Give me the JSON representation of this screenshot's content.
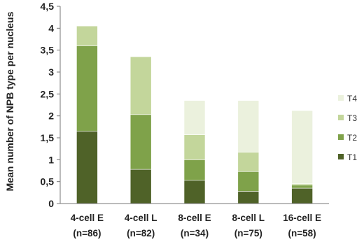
{
  "chart_data": {
    "type": "bar",
    "stacked": true,
    "ylabel": "Mean number of NPB type per nucleus",
    "ylim": [
      0,
      4.5
    ],
    "yticks": [
      "0",
      "0,5",
      "1",
      "1,5",
      "2",
      "2,5",
      "3",
      "3,5",
      "4",
      "4,5"
    ],
    "categories": [
      [
        "4-cell E",
        "(n=86)"
      ],
      [
        "4-cell L",
        "(n=82)"
      ],
      [
        "8-cell E",
        "(n=34)"
      ],
      [
        "8-cell L",
        "(n=75)"
      ],
      [
        "16-cell E",
        "(n=58)"
      ]
    ],
    "series": [
      {
        "name": "T1",
        "color": "#4f6228",
        "values": [
          1.65,
          0.78,
          0.53,
          0.28,
          0.35
        ]
      },
      {
        "name": "T2",
        "color": "#7fa24a",
        "values": [
          1.95,
          1.25,
          0.47,
          0.45,
          0.07
        ]
      },
      {
        "name": "T3",
        "color": "#c3d69b",
        "values": [
          0.45,
          1.32,
          0.57,
          0.44,
          0.03
        ]
      },
      {
        "name": "T4",
        "color": "#ebf1dd",
        "values": [
          0.0,
          0.0,
          0.78,
          1.18,
          1.67
        ]
      }
    ],
    "legend_position": "right",
    "legend_order": [
      "T4",
      "T3",
      "T2",
      "T1"
    ],
    "grid": false
  }
}
